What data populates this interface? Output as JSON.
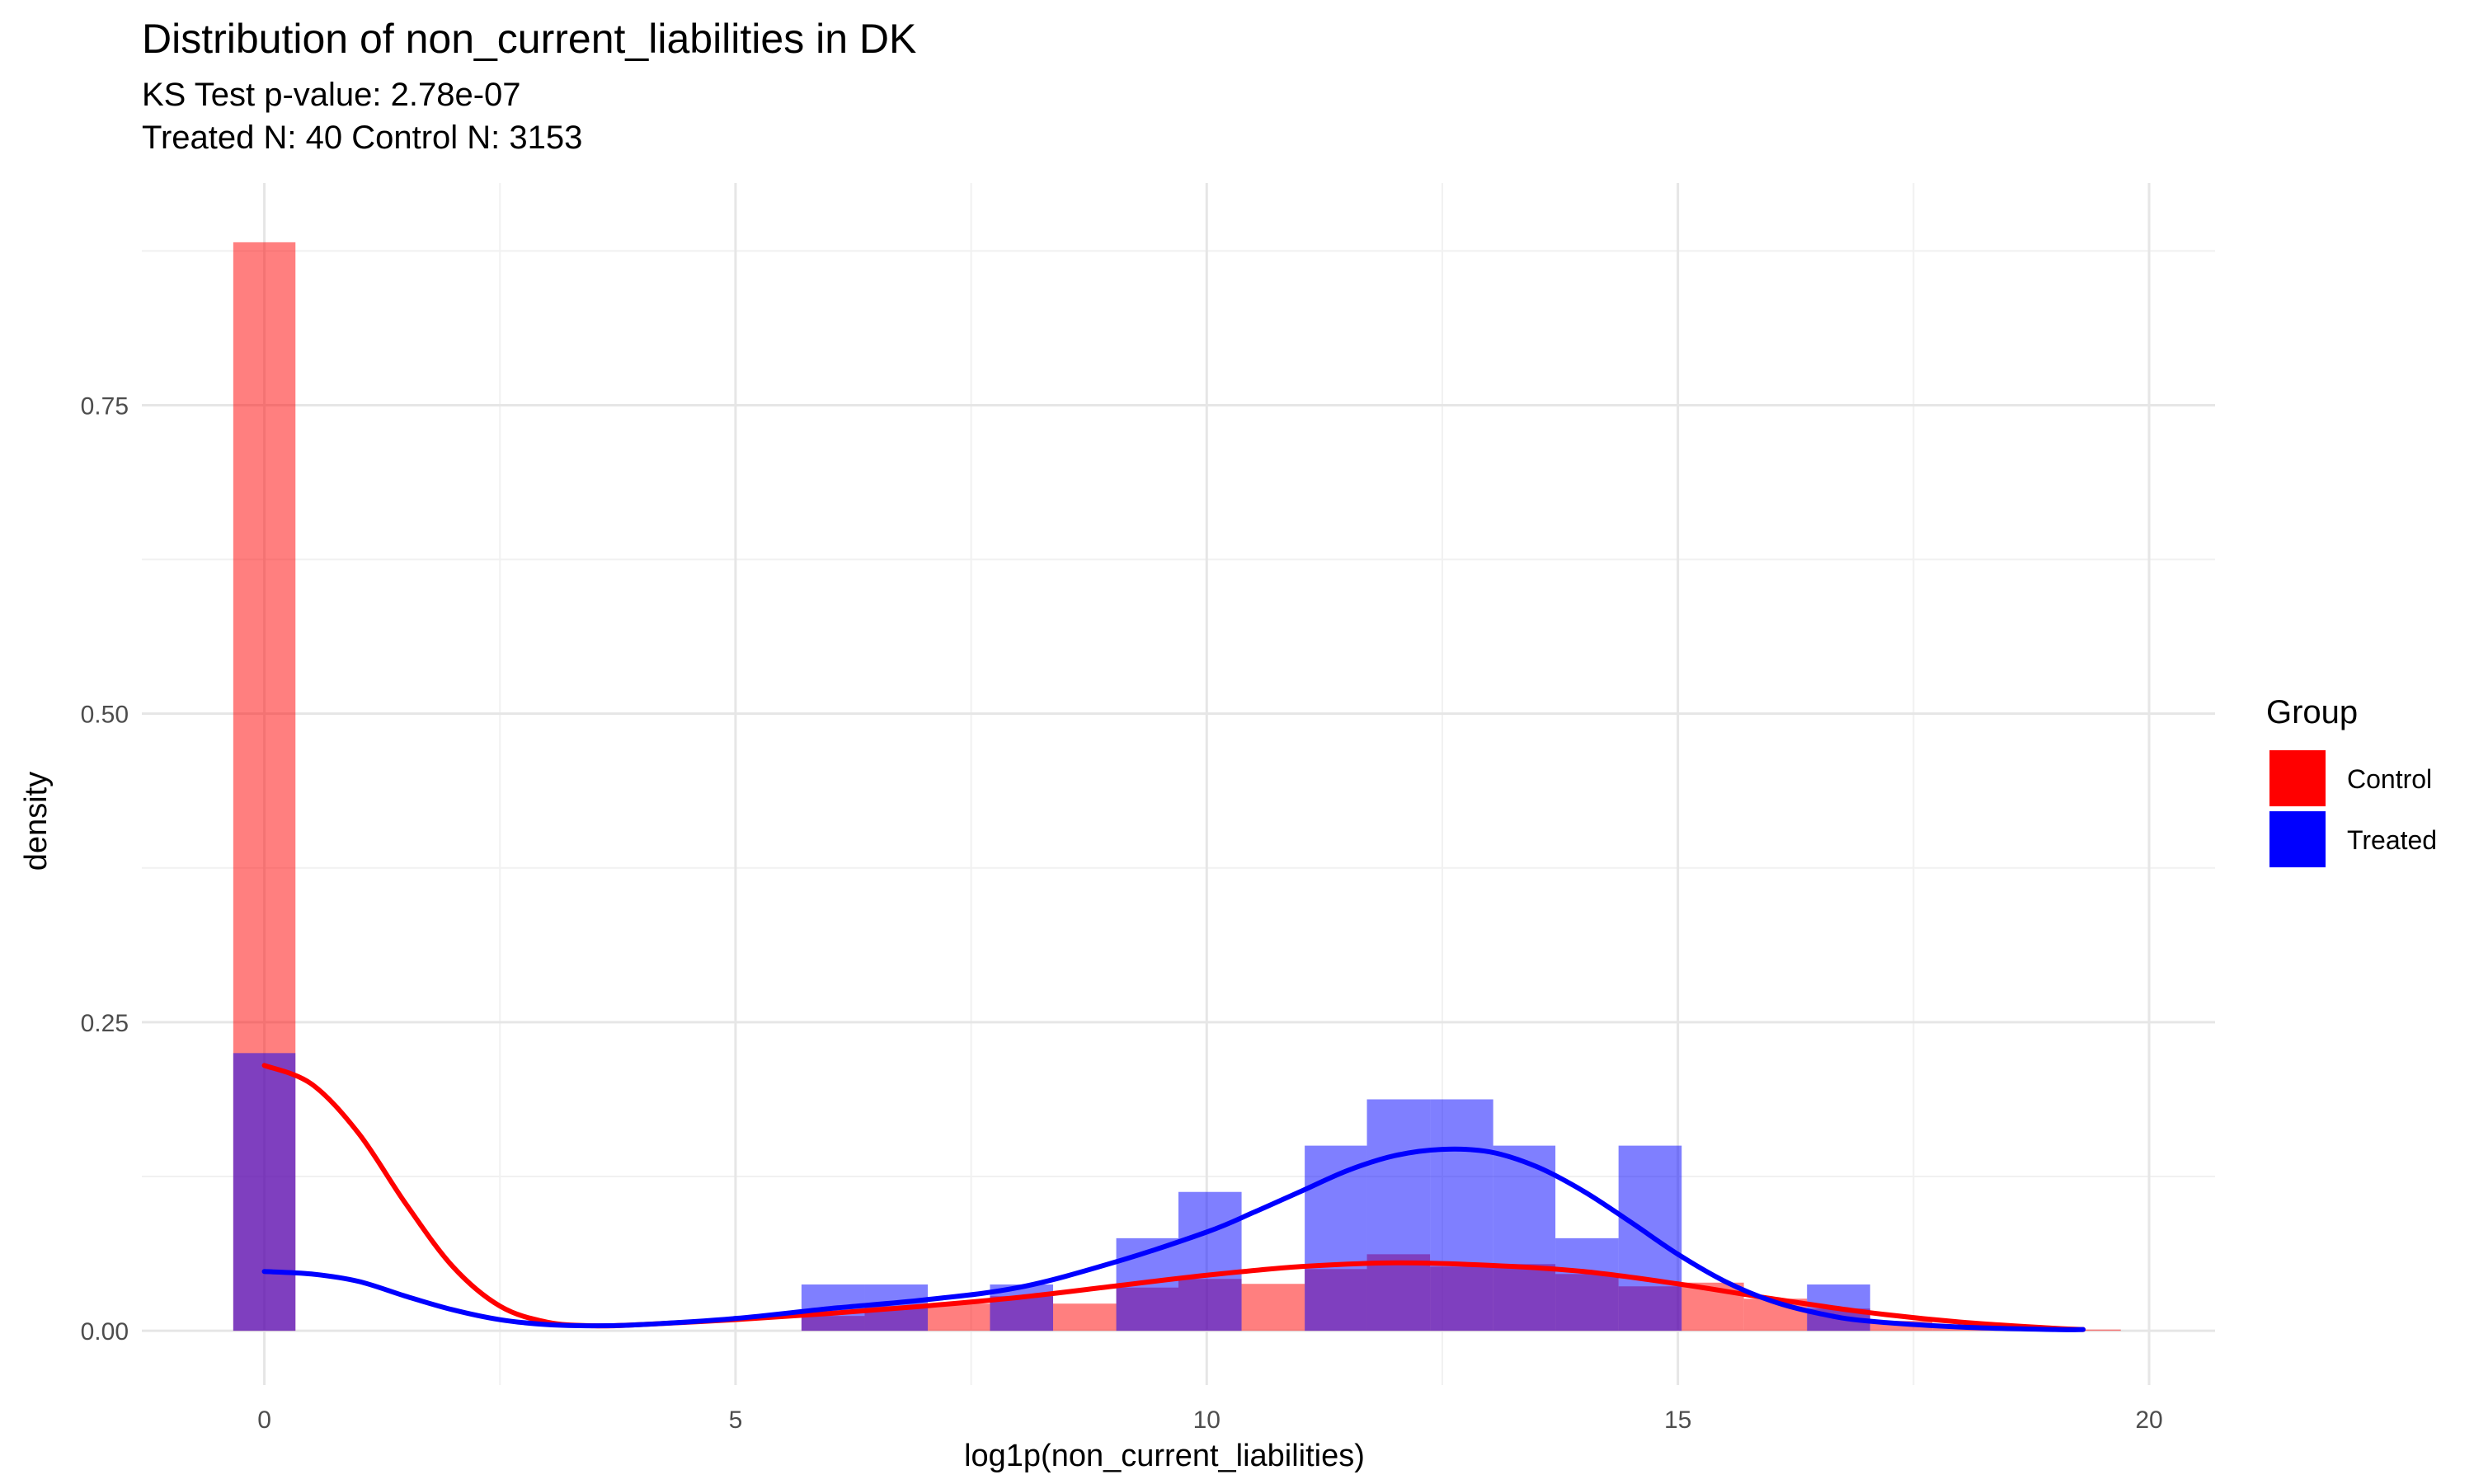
{
  "chart_data": {
    "type": "histogram-density",
    "title": "Distribution of non_current_liabilities in DK",
    "subtitle_lines": [
      "KS Test p-value: 2.78e-07",
      "Treated N: 40 Control N: 3153"
    ],
    "xlabel": "log1p(non_current_liabilities)",
    "ylabel": "density",
    "xlim": [
      -1.3,
      20.7
    ],
    "ylim": [
      -0.044,
      0.93
    ],
    "x_ticks": [
      0,
      5,
      10,
      15,
      20
    ],
    "x_tick_labels": [
      "0",
      "5",
      "10",
      "15",
      "20"
    ],
    "y_ticks": [
      0.0,
      0.25,
      0.5,
      0.75
    ],
    "y_tick_labels": [
      "0.00",
      "0.25",
      "0.50",
      "0.75"
    ],
    "grid": true,
    "legend_placement": "right",
    "legend_title": "Group",
    "bin_width": 0.67,
    "series": [
      {
        "name": "Control",
        "color": "#ff0000",
        "fill_opacity": 0.5,
        "histogram": [
          {
            "x0": -0.33,
            "x1": 0.33,
            "density": 0.882
          },
          {
            "x0": 5.7,
            "x1": 6.37,
            "density": 0.012
          },
          {
            "x0": 6.37,
            "x1": 7.04,
            "density": 0.02
          },
          {
            "x0": 7.04,
            "x1": 7.7,
            "density": 0.022
          },
          {
            "x0": 7.7,
            "x1": 8.37,
            "density": 0.028
          },
          {
            "x0": 8.37,
            "x1": 9.04,
            "density": 0.022
          },
          {
            "x0": 9.04,
            "x1": 9.7,
            "density": 0.035
          },
          {
            "x0": 9.7,
            "x1": 10.37,
            "density": 0.042
          },
          {
            "x0": 10.37,
            "x1": 11.04,
            "density": 0.038
          },
          {
            "x0": 11.04,
            "x1": 11.7,
            "density": 0.05
          },
          {
            "x0": 11.7,
            "x1": 12.37,
            "density": 0.062
          },
          {
            "x0": 12.37,
            "x1": 13.04,
            "density": 0.052
          },
          {
            "x0": 13.04,
            "x1": 13.7,
            "density": 0.054
          },
          {
            "x0": 13.7,
            "x1": 14.37,
            "density": 0.046
          },
          {
            "x0": 14.37,
            "x1": 15.04,
            "density": 0.036
          },
          {
            "x0": 15.04,
            "x1": 15.7,
            "density": 0.039
          },
          {
            "x0": 15.7,
            "x1": 16.37,
            "density": 0.026
          },
          {
            "x0": 16.37,
            "x1": 17.04,
            "density": 0.018
          },
          {
            "x0": 17.04,
            "x1": 17.7,
            "density": 0.008
          },
          {
            "x0": 17.7,
            "x1": 18.37,
            "density": 0.004
          },
          {
            "x0": 18.37,
            "x1": 19.04,
            "density": 0.002
          },
          {
            "x0": 19.04,
            "x1": 19.7,
            "density": 0.001
          }
        ],
        "density_x": [
          0.0,
          0.5,
          1.0,
          1.5,
          2.0,
          2.5,
          3.0,
          3.5,
          4.0,
          5.0,
          6.0,
          7.0,
          8.0,
          9.0,
          10.0,
          11.0,
          12.0,
          13.0,
          14.0,
          15.0,
          16.0,
          17.0,
          18.0,
          19.0,
          19.3
        ],
        "density_y": [
          0.215,
          0.2,
          0.16,
          0.103,
          0.052,
          0.02,
          0.007,
          0.004,
          0.005,
          0.009,
          0.014,
          0.02,
          0.027,
          0.036,
          0.045,
          0.052,
          0.055,
          0.053,
          0.048,
          0.038,
          0.026,
          0.015,
          0.007,
          0.002,
          0.001
        ]
      },
      {
        "name": "Treated",
        "color": "#0000ff",
        "fill_opacity": 0.5,
        "histogram": [
          {
            "x0": -0.33,
            "x1": 0.33,
            "density": 0.225
          },
          {
            "x0": 5.7,
            "x1": 6.37,
            "density": 0.0375
          },
          {
            "x0": 6.37,
            "x1": 7.04,
            "density": 0.0375
          },
          {
            "x0": 7.7,
            "x1": 8.37,
            "density": 0.0375
          },
          {
            "x0": 9.04,
            "x1": 9.7,
            "density": 0.075
          },
          {
            "x0": 9.7,
            "x1": 10.37,
            "density": 0.1125
          },
          {
            "x0": 11.04,
            "x1": 11.7,
            "density": 0.15
          },
          {
            "x0": 11.7,
            "x1": 12.37,
            "density": 0.1875
          },
          {
            "x0": 12.37,
            "x1": 13.04,
            "density": 0.1875
          },
          {
            "x0": 13.04,
            "x1": 13.7,
            "density": 0.15
          },
          {
            "x0": 13.7,
            "x1": 14.37,
            "density": 0.075
          },
          {
            "x0": 14.37,
            "x1": 15.04,
            "density": 0.15
          },
          {
            "x0": 16.37,
            "x1": 17.04,
            "density": 0.0375
          }
        ],
        "density_x": [
          0.0,
          0.5,
          1.0,
          1.5,
          2.0,
          2.5,
          3.0,
          3.5,
          4.0,
          5.0,
          6.0,
          7.0,
          8.0,
          9.0,
          10.0,
          10.5,
          11.0,
          11.5,
          12.0,
          12.5,
          13.0,
          13.5,
          14.0,
          14.5,
          15.0,
          15.5,
          16.0,
          16.5,
          17.0,
          18.0,
          19.0,
          19.3
        ],
        "density_y": [
          0.048,
          0.046,
          0.04,
          0.028,
          0.017,
          0.009,
          0.005,
          0.004,
          0.005,
          0.01,
          0.018,
          0.025,
          0.035,
          0.055,
          0.08,
          0.096,
          0.113,
          0.13,
          0.142,
          0.147,
          0.145,
          0.133,
          0.113,
          0.088,
          0.062,
          0.04,
          0.024,
          0.014,
          0.008,
          0.003,
          0.001,
          0.001
        ]
      }
    ]
  }
}
